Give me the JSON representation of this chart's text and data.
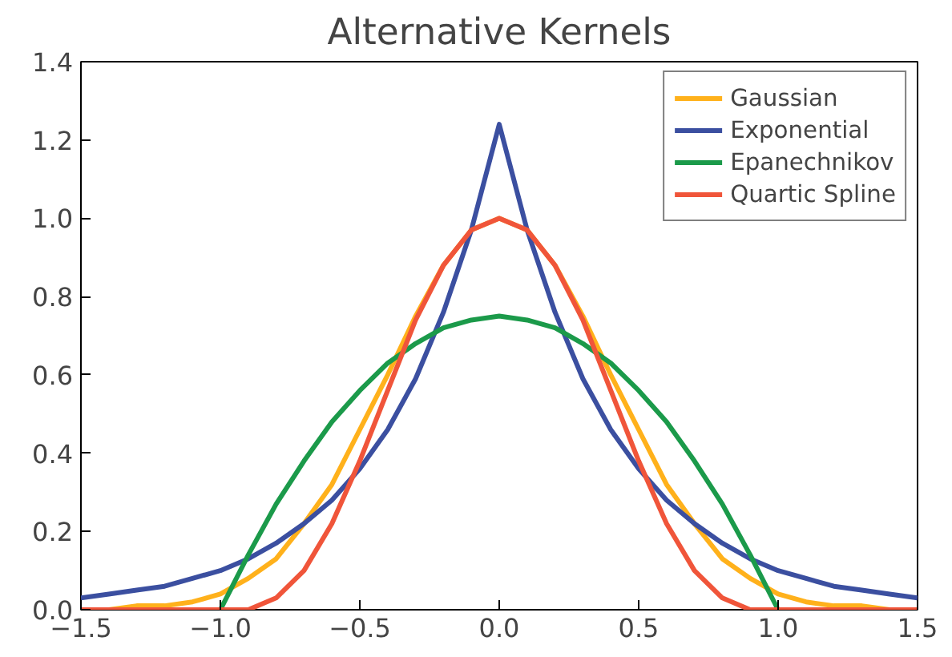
{
  "chart_data": {
    "type": "line",
    "title": "Alternative Kernels",
    "x": [
      -1.5,
      -1.4,
      -1.3,
      -1.2,
      -1.1,
      -1.0,
      -0.9,
      -0.8,
      -0.7,
      -0.6,
      -0.5,
      -0.4,
      -0.3,
      -0.2,
      -0.1,
      0.0,
      0.1,
      0.2,
      0.3,
      0.4,
      0.5,
      0.6,
      0.7,
      0.8,
      0.9,
      1.0,
      1.1,
      1.2,
      1.3,
      1.4,
      1.5
    ],
    "series": [
      {
        "name": "Gaussian",
        "color": "#ffb11b",
        "values": [
          0.0,
          0.0,
          0.01,
          0.01,
          0.02,
          0.04,
          0.08,
          0.13,
          0.22,
          0.32,
          0.46,
          0.6,
          0.75,
          0.88,
          0.97,
          1.0,
          0.97,
          0.88,
          0.75,
          0.6,
          0.46,
          0.32,
          0.22,
          0.13,
          0.08,
          0.04,
          0.02,
          0.01,
          0.01,
          0.0,
          0.0
        ]
      },
      {
        "name": "Exponential",
        "color": "#3b4fa0",
        "values": [
          0.03,
          0.04,
          0.05,
          0.06,
          0.08,
          0.1,
          0.13,
          0.17,
          0.22,
          0.28,
          0.36,
          0.46,
          0.59,
          0.76,
          0.97,
          1.24,
          0.97,
          0.76,
          0.59,
          0.46,
          0.36,
          0.28,
          0.22,
          0.17,
          0.13,
          0.1,
          0.08,
          0.06,
          0.05,
          0.04,
          0.03
        ]
      },
      {
        "name": "Epanechnikov",
        "color": "#1b9a4a",
        "values": [
          null,
          null,
          null,
          null,
          null,
          0,
          0.14,
          0.27,
          0.38,
          0.48,
          0.56,
          0.63,
          0.68,
          0.72,
          0.74,
          0.75,
          0.74,
          0.72,
          0.68,
          0.63,
          0.56,
          0.48,
          0.38,
          0.27,
          0.14,
          0,
          null,
          null,
          null,
          null,
          null
        ]
      },
      {
        "name": "Quartic Spline",
        "color": "#f0553a",
        "values": [
          0,
          0,
          0,
          0,
          0,
          0,
          0,
          0.03,
          0.1,
          0.22,
          0.38,
          0.56,
          0.74,
          0.88,
          0.97,
          1.0,
          0.97,
          0.88,
          0.74,
          0.56,
          0.38,
          0.22,
          0.1,
          0.03,
          0,
          0,
          0,
          0,
          0,
          0,
          0
        ]
      }
    ],
    "xlim": [
      -1.5,
      1.5
    ],
    "xticks": [
      {
        "value": -1.5,
        "label": "−1.5"
      },
      {
        "value": -1.0,
        "label": "−1.0"
      },
      {
        "value": -0.5,
        "label": "−0.5"
      },
      {
        "value": 0.0,
        "label": "0.0"
      },
      {
        "value": 0.5,
        "label": "0.5"
      },
      {
        "value": 1.0,
        "label": "1.0"
      },
      {
        "value": 1.5,
        "label": "1.5"
      }
    ],
    "ylim": [
      0,
      1.4
    ],
    "yticks": [
      {
        "value": 0,
        "label": "0.0"
      },
      {
        "value": 0.2,
        "label": "0.2"
      },
      {
        "value": 0.4,
        "label": "0.4"
      },
      {
        "value": 0.6,
        "label": "0.6"
      },
      {
        "value": 0.8,
        "label": "0.8"
      },
      {
        "value": 1.0,
        "label": "1.0"
      },
      {
        "value": 1.2,
        "label": "1.2"
      },
      {
        "value": 1.4,
        "label": "1.4"
      }
    ],
    "legend": "top right",
    "grid": false,
    "marker": "none",
    "line_style": "solid"
  }
}
